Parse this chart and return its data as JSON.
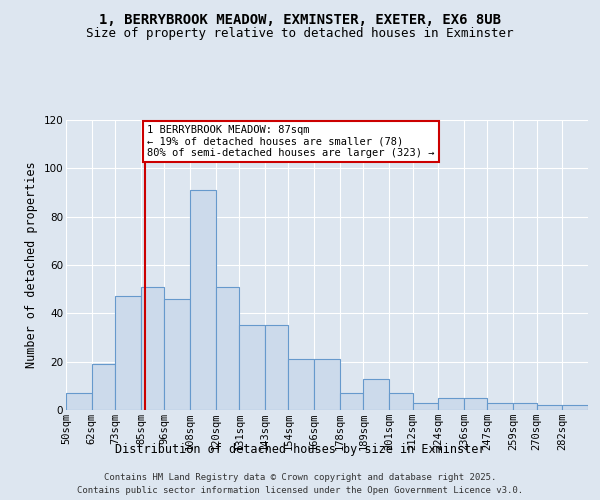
{
  "title_line1": "1, BERRYBROOK MEADOW, EXMINSTER, EXETER, EX6 8UB",
  "title_line2": "Size of property relative to detached houses in Exminster",
  "xlabel": "Distribution of detached houses by size in Exminster",
  "ylabel": "Number of detached properties",
  "bar_color": "#ccdaeb",
  "bar_edge_color": "#6699cc",
  "background_color": "#dde6f0",
  "plot_bg_color": "#dde6f0",
  "bins": [
    50,
    62,
    73,
    85,
    96,
    108,
    120,
    131,
    143,
    154,
    166,
    178,
    189,
    201,
    212,
    224,
    236,
    247,
    259,
    270,
    282
  ],
  "values": [
    7,
    19,
    47,
    51,
    46,
    91,
    51,
    35,
    35,
    21,
    21,
    7,
    13,
    7,
    3,
    5,
    5,
    3,
    3,
    2,
    2
  ],
  "bin_labels": [
    "50sqm",
    "62sqm",
    "73sqm",
    "85sqm",
    "96sqm",
    "108sqm",
    "120sqm",
    "131sqm",
    "143sqm",
    "154sqm",
    "166sqm",
    "178sqm",
    "189sqm",
    "201sqm",
    "212sqm",
    "224sqm",
    "236sqm",
    "247sqm",
    "259sqm",
    "270sqm",
    "282sqm"
  ],
  "red_line_x": 87,
  "red_line_color": "#cc0000",
  "annotation_text": "1 BERRYBROOK MEADOW: 87sqm\n← 19% of detached houses are smaller (78)\n80% of semi-detached houses are larger (323) →",
  "annotation_box_color": "#ffffff",
  "annotation_border_color": "#cc0000",
  "ylim": [
    0,
    120
  ],
  "yticks": [
    0,
    20,
    40,
    60,
    80,
    100,
    120
  ],
  "footer_line1": "Contains HM Land Registry data © Crown copyright and database right 2025.",
  "footer_line2": "Contains public sector information licensed under the Open Government Licence v3.0.",
  "title_fontsize": 10,
  "subtitle_fontsize": 9,
  "axis_label_fontsize": 8.5,
  "tick_fontsize": 7.5,
  "annotation_fontsize": 7.5,
  "footer_fontsize": 6.5
}
